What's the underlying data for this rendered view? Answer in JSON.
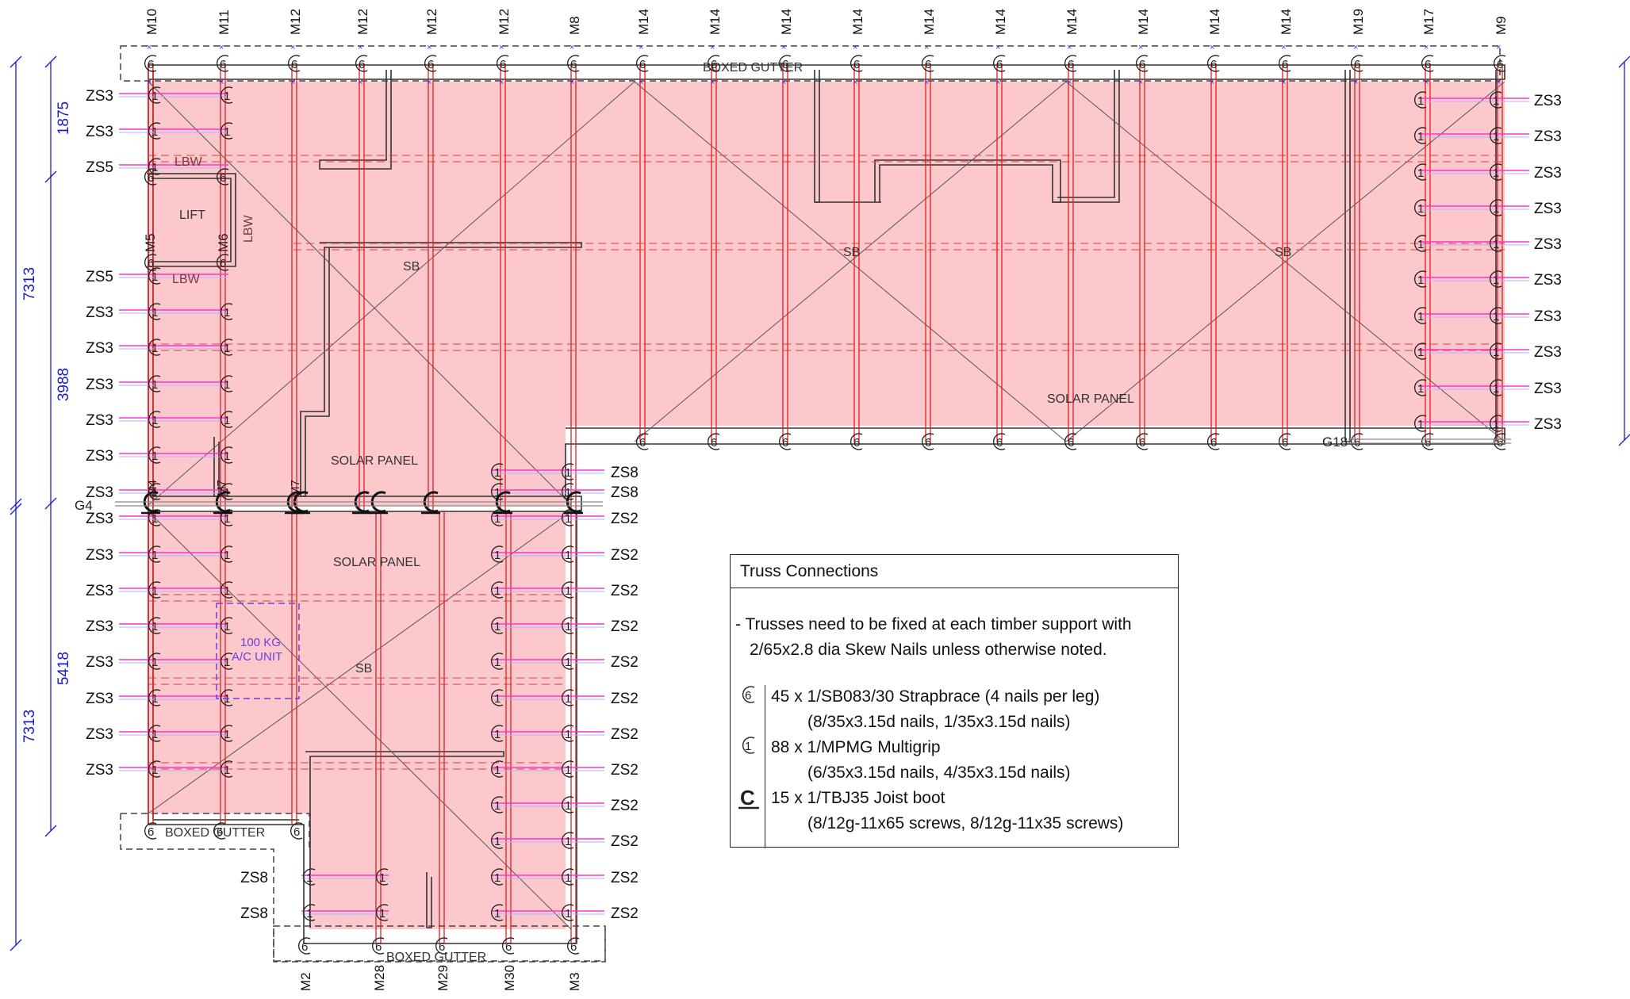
{
  "colors": {
    "roof_fill": "#fcc8cc",
    "truss_line": "#e02020",
    "tie_down": "#ff33cc",
    "dimension": "#1a1acc",
    "annotation": "#7a3fd6",
    "ink": "#222222"
  },
  "grid": {
    "top_labels": [
      "M10",
      "M11",
      "M12",
      "M12",
      "M12",
      "M12",
      "M8",
      "M14",
      "M14",
      "M14",
      "M14",
      "M14",
      "M14",
      "M14",
      "M14",
      "M14",
      "M14",
      "M19",
      "M17",
      "M9"
    ],
    "bottom_labels": [
      "M2",
      "M28",
      "M29",
      "M30",
      "M3"
    ],
    "left_ties": [
      "ZS3",
      "ZS3",
      "ZS5",
      "ZS5",
      "ZS3",
      "ZS3",
      "ZS3",
      "ZS3",
      "ZS3",
      "ZS3",
      "ZS3",
      "ZS3",
      "ZS3",
      "ZS3",
      "ZS3",
      "ZS3",
      "ZS3",
      "ZS3"
    ],
    "right_ties": [
      "ZS3",
      "ZS3",
      "ZS3",
      "ZS3",
      "ZS3",
      "ZS3",
      "ZS3",
      "ZS3",
      "ZS3",
      "ZS3"
    ],
    "center_ties": [
      "ZS8",
      "ZS8",
      "ZS2",
      "ZS2",
      "ZS2",
      "ZS2",
      "ZS2",
      "ZS2",
      "ZS2",
      "ZS2",
      "ZS2",
      "ZS2",
      "ZS2",
      "ZS2"
    ],
    "lower_ties": [
      "ZS8",
      "ZS8"
    ],
    "dimensions_outer": [
      "7313",
      "7313"
    ],
    "dimensions_inner": [
      "1875",
      "3988",
      "5418"
    ],
    "side_vertical_labels": [
      "M5",
      "M6",
      "M4",
      "M7",
      "M7"
    ]
  },
  "labels": {
    "boxed_gutter_top": "BOXED GUTTER",
    "boxed_gutter_left": "BOXED GUTTER",
    "boxed_gutter_bottom": "BOXED GUTTER",
    "lbw_1": "LBW",
    "lbw_2": "LBW",
    "lbw_3": "LBW",
    "lift": "LIFT",
    "sb_1": "SB",
    "sb_2": "SB",
    "sb_3": "SB",
    "sb_4": "SB",
    "solar_1": "SOLAR PANEL",
    "solar_2": "SOLAR PANEL",
    "solar_3": "SOLAR PANEL",
    "ac_unit_1": "100 KG",
    "ac_unit_2": "A/C UNIT",
    "g4": "G4",
    "g18": "G18"
  },
  "legend": {
    "title": "Truss Connections",
    "note_line1": "- Trusses need to be fixed at each timber support with",
    "note_line2": "2/65x2.8 dia Skew Nails unless otherwise noted.",
    "items": [
      {
        "symbol": "6",
        "line1": "45 x 1/SB083/30 Strapbrace (4 nails per leg)",
        "line2": "(8/35x3.15d nails, 1/35x3.15d nails)"
      },
      {
        "symbol": "1",
        "line1": "88 x 1/MPMG Multigrip",
        "line2": "(6/35x3.15d nails, 4/35x3.15d nails)"
      },
      {
        "symbol": "C",
        "line1": "15 x 1/TBJ35 Joist boot",
        "line2": "(8/12g-11x65 screws, 8/12g-11x35 screws)"
      }
    ]
  }
}
